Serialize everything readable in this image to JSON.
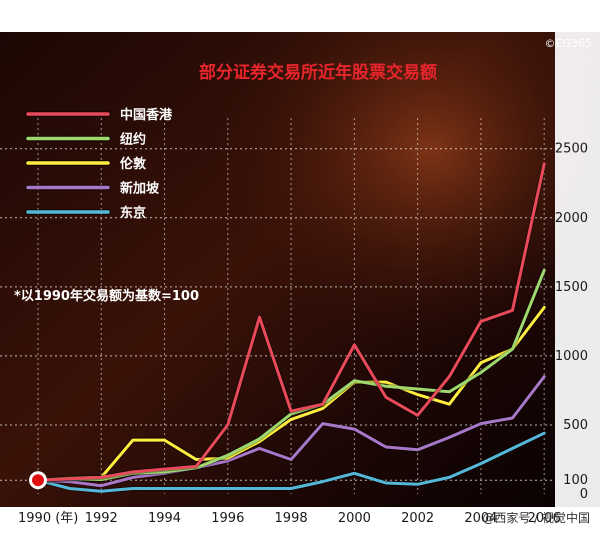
{
  "watermark_top": "©EG365",
  "watermark_bottom": "@西家号 / 视觉中国",
  "note": "*以1990年交易额为基数=100",
  "colors": {
    "background": "#0b0302",
    "title": "#e8252b",
    "grid": "#ffffff",
    "text": "#ffffff",
    "axis_text": "#1a1a1a",
    "start_marker": "#e01010"
  },
  "chart_data": {
    "type": "line",
    "title": "部分证券交易所近年股票交易额",
    "xlabel": "",
    "ylabel": "",
    "x": [
      1990,
      1991,
      1992,
      1993,
      1994,
      1995,
      1996,
      1997,
      1998,
      1999,
      2000,
      2001,
      2002,
      2003,
      2004,
      2005,
      2006
    ],
    "x_tick_labels": [
      "1990 (年)",
      "1992",
      "1994",
      "1996",
      "1998",
      "2000",
      "2002",
      "2004",
      "2006"
    ],
    "x_tick_values": [
      1990,
      1992,
      1994,
      1996,
      1998,
      2000,
      2002,
      2004,
      2006
    ],
    "y_ticks": [
      0,
      100,
      500,
      1000,
      1500,
      2000,
      2500
    ],
    "ylim": [
      0,
      2650
    ],
    "xlim": [
      1990,
      2006.5
    ],
    "grid": true,
    "legend_position": "top-left",
    "series": [
      {
        "name": "中国香港",
        "color": "#e84a5a",
        "values": [
          100,
          110,
          120,
          160,
          180,
          200,
          500,
          1280,
          600,
          650,
          1080,
          700,
          570,
          850,
          1250,
          1330,
          2390
        ]
      },
      {
        "name": "纽约",
        "color": "#9fd86e",
        "values": [
          100,
          110,
          105,
          150,
          160,
          190,
          280,
          400,
          580,
          650,
          820,
          780,
          760,
          740,
          880,
          1050,
          1620
        ]
      },
      {
        "name": "伦敦",
        "color": "#ffee40",
        "values": [
          100,
          115,
          120,
          390,
          390,
          250,
          260,
          380,
          540,
          620,
          810,
          810,
          720,
          650,
          950,
          1050,
          1350
        ]
      },
      {
        "name": "新加坡",
        "color": "#a878c8",
        "values": [
          100,
          90,
          60,
          120,
          150,
          190,
          240,
          330,
          250,
          510,
          470,
          340,
          320,
          410,
          510,
          550,
          850
        ]
      },
      {
        "name": "东京",
        "color": "#55b8d8",
        "values": [
          100,
          40,
          20,
          40,
          40,
          40,
          40,
          40,
          40,
          90,
          150,
          80,
          70,
          120,
          220,
          330,
          440
        ]
      }
    ]
  }
}
